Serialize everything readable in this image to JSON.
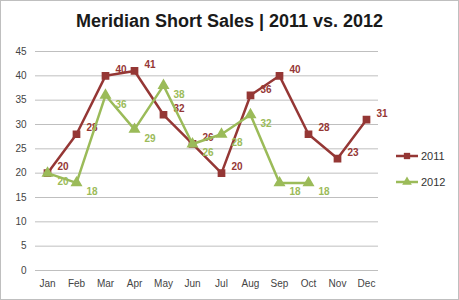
{
  "chart_data": {
    "type": "line",
    "title": "Meridian Short Sales | 2011 vs. 2012",
    "categories": [
      "Jan",
      "Feb",
      "Mar",
      "Apr",
      "May",
      "Jun",
      "Jul",
      "Aug",
      "Sep",
      "Oct",
      "Nov",
      "Dec"
    ],
    "series": [
      {
        "name": "2011",
        "color": "#953735",
        "marker": "square",
        "values": [
          20,
          28,
          40,
          41,
          32,
          26,
          20,
          36,
          40,
          28,
          23,
          31
        ]
      },
      {
        "name": "2012",
        "color": "#9bbb59",
        "marker": "triangle",
        "values": [
          20,
          18,
          36,
          29,
          38,
          26,
          28,
          32,
          18,
          18,
          null,
          null
        ]
      }
    ],
    "ylim": [
      0,
      45
    ],
    "yticks": [
      0,
      5,
      10,
      15,
      20,
      25,
      30,
      35,
      40,
      45
    ],
    "grid": true,
    "legend": "right",
    "data_labels": true
  }
}
